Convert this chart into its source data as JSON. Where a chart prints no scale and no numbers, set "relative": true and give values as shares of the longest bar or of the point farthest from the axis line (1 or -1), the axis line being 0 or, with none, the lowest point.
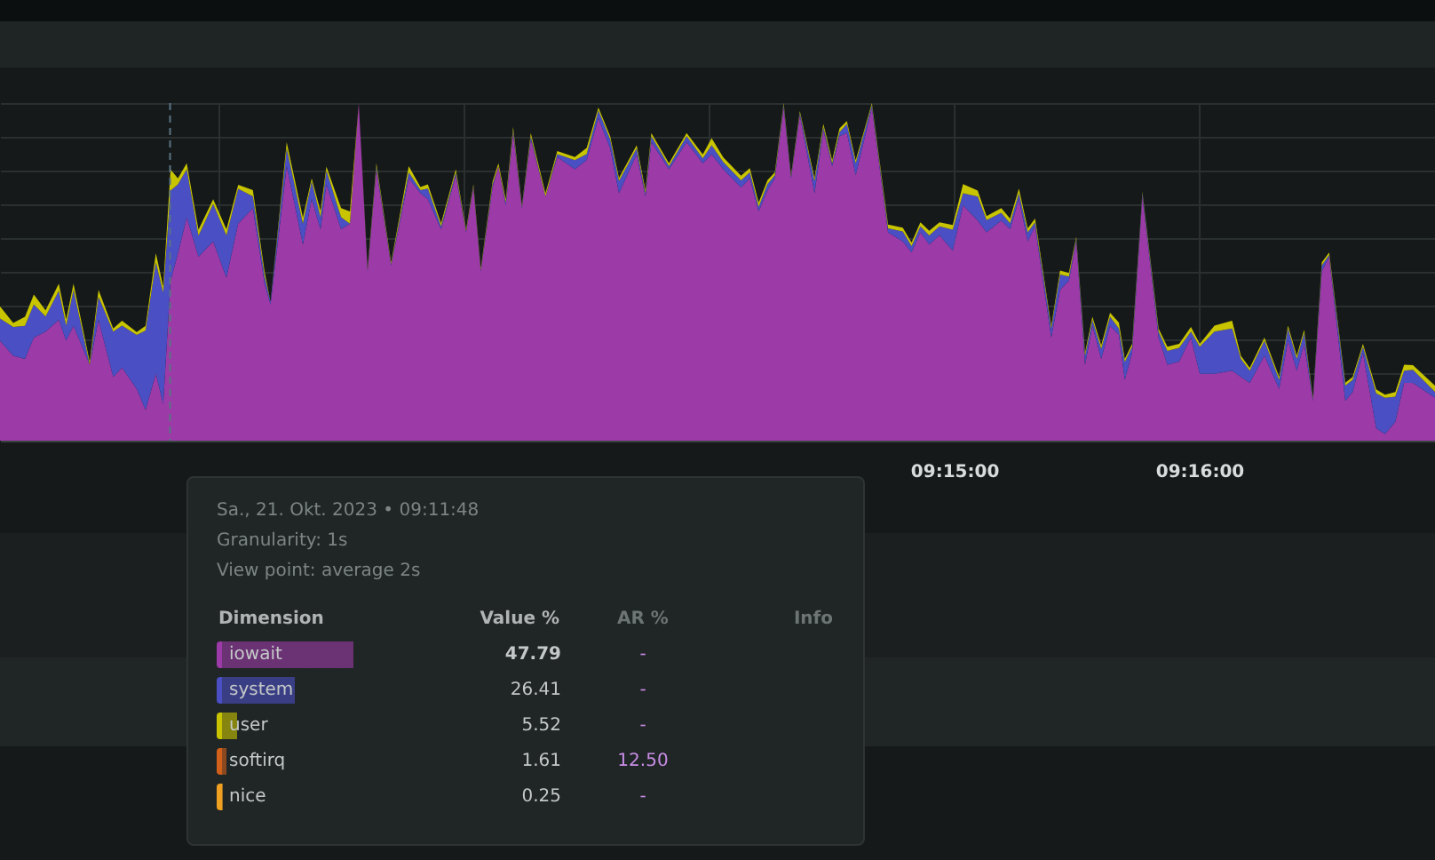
{
  "chart_data": {
    "type": "area",
    "stacked": true,
    "relative": true,
    "grid": true,
    "legend": "bottom left",
    "x": [
      9.1851,
      9.186,
      9.1868,
      9.1874,
      9.1882,
      9.1891,
      9.1896,
      9.1901,
      9.1912,
      9.1918,
      9.1928,
      9.1934,
      9.1944,
      9.195,
      9.1957,
      9.1962,
      9.1967,
      9.1972,
      9.1978,
      9.1986,
      9.1996,
      9.2005,
      9.2013,
      9.2023,
      9.2031,
      9.2035,
      9.2046,
      9.2057,
      9.2063,
      9.2069,
      9.2073,
      9.2083,
      9.2089,
      9.2095,
      9.2101,
      9.2107,
      9.2117,
      9.2129,
      9.2137,
      9.2142,
      9.2151,
      9.2161,
      9.2168,
      9.2173,
      9.2178,
      9.2186,
      9.219,
      9.2195,
      9.22,
      9.2206,
      9.2212,
      9.2222,
      9.223,
      9.2242,
      9.225,
      9.2258,
      9.2266,
      9.2272,
      9.2284,
      9.229,
      9.2294,
      9.2306,
      9.2318,
      9.2329,
      9.2335,
      9.2343,
      9.2355,
      9.2361,
      9.2367,
      9.2373,
      9.2378,
      9.2384,
      9.2389,
      9.2395,
      9.2405,
      9.2411,
      9.2417,
      9.2422,
      9.2427,
      9.2433,
      9.2444,
      9.2455,
      9.2465,
      9.2471,
      9.2477,
      9.2483,
      9.249,
      9.2499,
      9.2506,
      9.2516,
      9.2522,
      9.2532,
      9.2538,
      9.2544,
      9.255,
      9.2555,
      9.2566,
      9.2572,
      9.2578,
      9.2583,
      9.2589,
      9.2594,
      9.26,
      9.2606,
      9.2612,
      9.2616,
      9.2621,
      9.2628,
      9.2639,
      9.2645,
      9.2653,
      9.2661,
      9.2667,
      9.2677,
      9.2689,
      9.2695,
      9.2701,
      9.2711,
      9.2721,
      9.2727,
      9.2733,
      9.2738,
      9.2744,
      9.275,
      9.2755,
      9.2766,
      9.2771,
      9.2778,
      9.2787,
      9.2793,
      9.28,
      9.2806,
      9.2812,
      9.2827
    ],
    "xlim": [
      9.1851,
      9.2827
    ],
    "xticks": [
      {
        "value": 9.2,
        "label": null
      },
      {
        "value": 9.216667,
        "label": null
      },
      {
        "value": 9.233333,
        "label": null
      },
      {
        "value": 9.25,
        "label": "09:15:00"
      },
      {
        "value": 9.266667,
        "label": "09:16:00"
      }
    ],
    "series": [
      {
        "name": "iowait",
        "color": "#9c3aa8",
        "values": [
          0.296,
          0.251,
          0.242,
          0.305,
          0.323,
          0.358,
          0.296,
          0.34,
          0.225,
          0.358,
          0.189,
          0.216,
          0.153,
          0.091,
          0.198,
          0.109,
          0.474,
          0.554,
          0.661,
          0.545,
          0.59,
          0.483,
          0.643,
          0.688,
          0.465,
          0.403,
          0.813,
          0.581,
          0.715,
          0.626,
          0.759,
          0.626,
          0.643,
          1,
          0.501,
          0.804,
          0.519,
          0.777,
          0.733,
          0.715,
          0.626,
          0.786,
          0.617,
          0.75,
          0.501,
          0.75,
          0.813,
          0.697,
          0.911,
          0.688,
          0.893,
          0.724,
          0.84,
          0.804,
          0.831,
          0.955,
          0.866,
          0.733,
          0.848,
          0.724,
          0.884,
          0.804,
          0.884,
          0.822,
          0.848,
          0.804,
          0.75,
          0.777,
          0.679,
          0.742,
          0.777,
          0.986,
          0.777,
          0.964,
          0.733,
          0.92,
          0.813,
          0.902,
          0.911,
          0.786,
          0.986,
          0.617,
          0.59,
          0.558,
          0.617,
          0.581,
          0.608,
          0.563,
          0.697,
          0.652,
          0.617,
          0.652,
          0.626,
          0.715,
          0.59,
          0.635,
          0.305,
          0.447,
          0.474,
          0.59,
          0.225,
          0.34,
          0.242,
          0.34,
          0.314,
          0.18,
          0.26,
          0.724,
          0.305,
          0.225,
          0.234,
          0.305,
          0.198,
          0.198,
          0.207,
          0.189,
          0.171,
          0.251,
          0.153,
          0.296,
          0.207,
          0.287,
          0.118,
          0.501,
          0.545,
          0.118,
          0.144,
          0.26,
          0.037,
          0.02,
          0.055,
          0.171,
          0.171,
          0.127
        ]
      },
      {
        "name": "system",
        "color": "#4a4fc4",
        "values": [
          0.066,
          0.086,
          0.098,
          0.098,
          0.045,
          0.086,
          0.045,
          0.107,
          0,
          0.068,
          0.134,
          0.125,
          0.16,
          0.235,
          0.33,
          0.33,
          0.267,
          0.205,
          0.143,
          0.062,
          0.111,
          0.125,
          0.103,
          0.036,
          0.021,
          0.009,
          0.053,
          0.062,
          0.053,
          0.036,
          0.041,
          0.036,
          0,
          0,
          0.004,
          0.009,
          0.004,
          0.018,
          0.009,
          0.032,
          0.009,
          0.009,
          0.004,
          0.004,
          0.004,
          0.009,
          0,
          0.009,
          0.009,
          0.005,
          0.009,
          0,
          0.009,
          0.027,
          0.018,
          0.023,
          0.027,
          0.036,
          0.018,
          0.009,
          0.018,
          0.009,
          0.018,
          0.014,
          0.027,
          0.021,
          0.021,
          0.018,
          0.014,
          0.018,
          0.009,
          0.009,
          0.005,
          0.007,
          0.036,
          0.009,
          0.009,
          0.012,
          0.027,
          0.036,
          0.009,
          0.012,
          0.03,
          0.018,
          0.018,
          0.027,
          0.027,
          0.062,
          0.036,
          0.071,
          0.036,
          0.023,
          0.018,
          0.018,
          0.027,
          0.012,
          0.027,
          0.045,
          0.012,
          0.009,
          0.027,
          0.018,
          0.03,
          0.027,
          0.018,
          0.053,
          0.018,
          0.009,
          0.018,
          0.041,
          0.041,
          0.018,
          0.08,
          0.125,
          0.125,
          0.053,
          0.036,
          0.045,
          0.027,
          0.036,
          0.036,
          0.032,
          0.005,
          0.018,
          0.005,
          0.045,
          0.036,
          0.018,
          0.103,
          0.107,
          0.075,
          0.036,
          0.039,
          0.018
        ]
      },
      {
        "name": "user",
        "color": "#c8c400",
        "values": [
          0.036,
          0.012,
          0.027,
          0.03,
          0.018,
          0.021,
          0.018,
          0.018,
          0.009,
          0.021,
          0.009,
          0.014,
          0.009,
          0.014,
          0.027,
          0.018,
          0.062,
          0.018,
          0.018,
          0.018,
          0.014,
          0.018,
          0.012,
          0.018,
          0.014,
          0,
          0.018,
          0.018,
          0.009,
          0.018,
          0.012,
          0.027,
          0.036,
          0,
          0.005,
          0.009,
          0.005,
          0.018,
          0.009,
          0.012,
          0.009,
          0.009,
          0.005,
          0.005,
          0.005,
          0.009,
          0.009,
          0.009,
          0.009,
          0.004,
          0.009,
          0.009,
          0.009,
          0.009,
          0.018,
          0.009,
          0.009,
          0.009,
          0.009,
          0.009,
          0.009,
          0.009,
          0.009,
          0.012,
          0.021,
          0.014,
          0.014,
          0.012,
          0.012,
          0.012,
          0.009,
          0.005,
          0.004,
          0.005,
          0.009,
          0.009,
          0.009,
          0.011,
          0.009,
          0.009,
          0.005,
          0.011,
          0.011,
          0.011,
          0.012,
          0.014,
          0.012,
          0.014,
          0.027,
          0.018,
          0.012,
          0.014,
          0.014,
          0.014,
          0.012,
          0.011,
          0.009,
          0.012,
          0.011,
          0.005,
          0.009,
          0.009,
          0.011,
          0.012,
          0.018,
          0.009,
          0.009,
          0.004,
          0.009,
          0.012,
          0.012,
          0.014,
          0.009,
          0.018,
          0.023,
          0.009,
          0.009,
          0.009,
          0.009,
          0.009,
          0.009,
          0.009,
          0.004,
          0.009,
          0.007,
          0.009,
          0.009,
          0.009,
          0.012,
          0.009,
          0.014,
          0.018,
          0.014,
          0.018
        ]
      },
      {
        "name": "softirq",
        "color": "#d0601a",
        "values": [
          null,
          null,
          null,
          null,
          null,
          null,
          null,
          null,
          null,
          null,
          null,
          null,
          null,
          null,
          null,
          null,
          null,
          null,
          null,
          null,
          null,
          null,
          null,
          null,
          null,
          null,
          null,
          null,
          null,
          null,
          null,
          null,
          null,
          null,
          null,
          null,
          null,
          null,
          null,
          null,
          null,
          null,
          null,
          null,
          null,
          null,
          null,
          null,
          null,
          null,
          null,
          null,
          null,
          null,
          null,
          null,
          null,
          null,
          null,
          null,
          null,
          null,
          null,
          null,
          null,
          null,
          null,
          null,
          null,
          null,
          null,
          null,
          null,
          null,
          null,
          null,
          null,
          null,
          null,
          null,
          null,
          null,
          null,
          null,
          null,
          null,
          null,
          null,
          null,
          null,
          null,
          null,
          null,
          null,
          null,
          null,
          null,
          null,
          null,
          null,
          null,
          null,
          null,
          null,
          null,
          null,
          null,
          null,
          null,
          null,
          null,
          null,
          null,
          null,
          null,
          null,
          null,
          null,
          null,
          null,
          null,
          null,
          null,
          null,
          null,
          null,
          null,
          null,
          null,
          null,
          null,
          null,
          null,
          null
        ]
      },
      {
        "name": "nice",
        "color": "#f0a020",
        "values": [
          null,
          null,
          null,
          null,
          null,
          null,
          null,
          null,
          null,
          null,
          null,
          null,
          null,
          null,
          null,
          null,
          null,
          null,
          null,
          null,
          null,
          null,
          null,
          null,
          null,
          null,
          null,
          null,
          null,
          null,
          null,
          null,
          null,
          null,
          null,
          null,
          null,
          null,
          null,
          null,
          null,
          null,
          null,
          null,
          null,
          null,
          null,
          null,
          null,
          null,
          null,
          null,
          null,
          null,
          null,
          null,
          null,
          null,
          null,
          null,
          null,
          null,
          null,
          null,
          null,
          null,
          null,
          null,
          null,
          null,
          null,
          null,
          null,
          null,
          null,
          null,
          null,
          null,
          null,
          null,
          null,
          null,
          null,
          null,
          null,
          null,
          null,
          null,
          null,
          null,
          null,
          null,
          null,
          null,
          null,
          null,
          null,
          null,
          null,
          null,
          null,
          null,
          null,
          null,
          null,
          null,
          null,
          null,
          null,
          null,
          null,
          null,
          null,
          null,
          null,
          null,
          null,
          null,
          null,
          null,
          null,
          null,
          null,
          null,
          null,
          null,
          null,
          null,
          null,
          null,
          null,
          null,
          null,
          null
        ]
      }
    ],
    "ref_lines": [
      {
        "axis": "x",
        "value": 9.196667,
        "label": null,
        "color": "#5a7384",
        "line_style": "dashed"
      }
    ],
    "annotations": [
      "Sa., 21. Okt. 2023 • 09:11:48",
      "Granularity: 1s",
      "View point: average 2s",
      "Dimension",
      "Value %",
      "AR %",
      "Info",
      "47.79",
      "-",
      "26.41",
      "-",
      "5.52",
      "-",
      "1.61",
      "12.50",
      "0.25",
      "-"
    ]
  }
}
